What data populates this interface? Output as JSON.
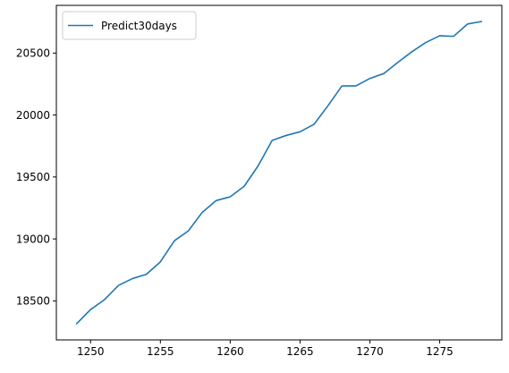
{
  "chart_data": {
    "type": "line",
    "title": "",
    "xlabel": "",
    "ylabel": "",
    "xlim": [
      1247.55,
      1279.45
    ],
    "ylim": [
      18185,
      20885
    ],
    "x_ticks": [
      1250,
      1255,
      1260,
      1265,
      1270,
      1275
    ],
    "y_ticks": [
      18500,
      19000,
      19500,
      20000,
      20500
    ],
    "grid": false,
    "legend_position": "upper-left",
    "series": [
      {
        "name": "Predict30days",
        "color": "#1f77b4",
        "x": [
          1249,
          1250,
          1251,
          1252,
          1253,
          1254,
          1255,
          1256,
          1257,
          1258,
          1259,
          1260,
          1261,
          1262,
          1263,
          1264,
          1265,
          1266,
          1267,
          1268,
          1269,
          1270,
          1271,
          1272,
          1273,
          1274,
          1275,
          1276,
          1277,
          1278
        ],
        "values": [
          18315,
          18430,
          18510,
          18625,
          18680,
          18715,
          18815,
          18985,
          19065,
          19215,
          19310,
          19340,
          19425,
          19590,
          19795,
          19835,
          19865,
          19925,
          20075,
          20235,
          20235,
          20295,
          20335,
          20425,
          20510,
          20585,
          20640,
          20635,
          20735,
          20755
        ]
      }
    ]
  }
}
